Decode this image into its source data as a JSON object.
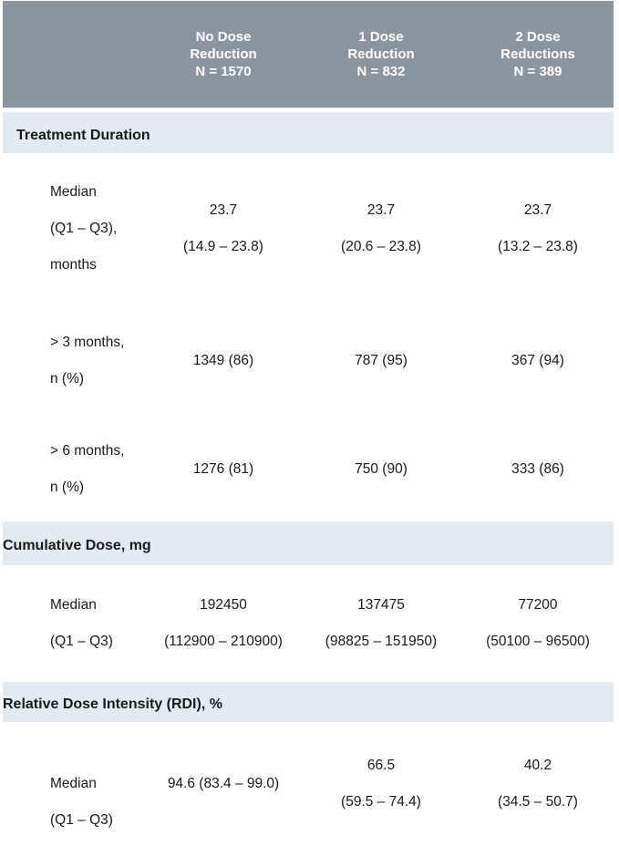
{
  "colors": {
    "header_bg": "#8a959e",
    "header_text": "#ffffff",
    "section_bg": "#e3eaf1",
    "body_text": "#1a1a1a"
  },
  "header": {
    "columns": [
      {
        "lines": [
          "No Dose",
          "Reduction",
          "N = 1570"
        ]
      },
      {
        "lines": [
          "1 Dose",
          "Reduction",
          "N = 832"
        ]
      },
      {
        "lines": [
          "2 Dose",
          "Reductions",
          "N = 389"
        ]
      }
    ]
  },
  "sections": [
    {
      "title": "Treatment Duration",
      "rows": [
        {
          "label": [
            "Median",
            "(Q1 – Q3),",
            "months"
          ],
          "values": [
            [
              "23.7",
              "(14.9 – 23.8)"
            ],
            [
              "23.7",
              "(20.6 – 23.8)"
            ],
            [
              "23.7",
              "(13.2 – 23.8)"
            ]
          ]
        },
        {
          "label": [
            "> 3 months,",
            "n (%)"
          ],
          "values": [
            [
              "1349 (86)"
            ],
            [
              "787 (95)"
            ],
            [
              "367 (94)"
            ]
          ]
        },
        {
          "label": [
            "> 6 months,",
            "n (%)"
          ],
          "values": [
            [
              "1276 (81)"
            ],
            [
              "750 (90)"
            ],
            [
              "333 (86)"
            ]
          ]
        }
      ]
    },
    {
      "title": "Cumulative Dose, mg",
      "rows": [
        {
          "label": [
            "Median",
            "(Q1 – Q3)"
          ],
          "values": [
            [
              "192450",
              "(112900 – 210900)"
            ],
            [
              "137475",
              "(98825 – 151950)"
            ],
            [
              "77200",
              "(50100 – 96500)"
            ]
          ]
        }
      ]
    },
    {
      "title": "Relative Dose Intensity (RDI), %",
      "rows": [
        {
          "label": [
            "Median",
            "(Q1 – Q3)"
          ],
          "values": [
            [
              "94.6 (83.4 – 99.0)"
            ],
            [
              "66.5",
              "(59.5 – 74.4)"
            ],
            [
              "40.2",
              "(34.5 – 50.7)"
            ]
          ]
        }
      ]
    }
  ]
}
